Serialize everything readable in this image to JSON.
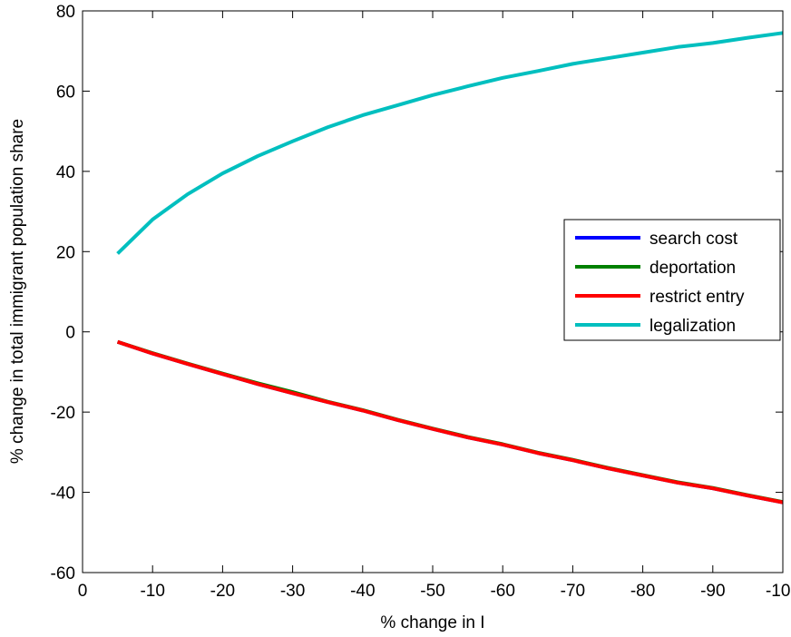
{
  "chart_data": {
    "type": "line",
    "title": "",
    "xlabel": "% change in I",
    "ylabel": "% change in total immigrant population share",
    "xlim": [
      0,
      -100
    ],
    "ylim": [
      -60,
      80
    ],
    "x_ticks": [
      0,
      -10,
      -20,
      -30,
      -40,
      -50,
      -60,
      -70,
      -80,
      -90,
      -100
    ],
    "y_ticks": [
      -60,
      -40,
      -20,
      0,
      20,
      40,
      60,
      80
    ],
    "x_tick_labels": [
      "0",
      "-10",
      "-20",
      "-30",
      "-40",
      "-50",
      "-60",
      "-70",
      "-80",
      "-90",
      "-100"
    ],
    "y_tick_labels": [
      "-60",
      "-40",
      "-20",
      "0",
      "20",
      "40",
      "60",
      "80"
    ],
    "grid": false,
    "legend_position": "right",
    "x": [
      -5,
      -10,
      -15,
      -20,
      -25,
      -30,
      -35,
      -40,
      -45,
      -50,
      -55,
      -60,
      -65,
      -70,
      -75,
      -80,
      -85,
      -90,
      -95,
      -100
    ],
    "series": [
      {
        "name": "search cost",
        "color": "#0000ff",
        "values": [
          -2.5,
          -5.4,
          -8.0,
          -10.5,
          -13.0,
          -15.3,
          -17.5,
          -19.6,
          -22.0,
          -24.2,
          -26.3,
          -28.1,
          -30.2,
          -32.0,
          -34.0,
          -35.8,
          -37.6,
          -39.0,
          -40.8,
          -42.5
        ]
      },
      {
        "name": "deportation",
        "color": "#008000",
        "values": [
          -2.5,
          -5.3,
          -7.9,
          -10.4,
          -12.8,
          -15.0,
          -17.4,
          -19.5,
          -21.9,
          -24.1,
          -26.2,
          -28.0,
          -30.1,
          -31.9,
          -33.9,
          -35.7,
          -37.5,
          -38.9,
          -40.7,
          -42.4
        ]
      },
      {
        "name": "restrict entry",
        "color": "#ff0000",
        "values": [
          -2.5,
          -5.4,
          -8.0,
          -10.5,
          -13.0,
          -15.3,
          -17.5,
          -19.6,
          -22.0,
          -24.2,
          -26.3,
          -28.1,
          -30.2,
          -32.0,
          -34.0,
          -35.8,
          -37.6,
          -39.0,
          -40.8,
          -42.5
        ]
      },
      {
        "name": "legalization",
        "color": "#00bfbf",
        "values": [
          19.5,
          28.0,
          34.3,
          39.5,
          43.8,
          47.5,
          51.0,
          54.0,
          56.5,
          59.0,
          61.2,
          63.3,
          65.0,
          66.8,
          68.2,
          69.6,
          71.0,
          72.0,
          73.3,
          74.5
        ]
      }
    ]
  }
}
